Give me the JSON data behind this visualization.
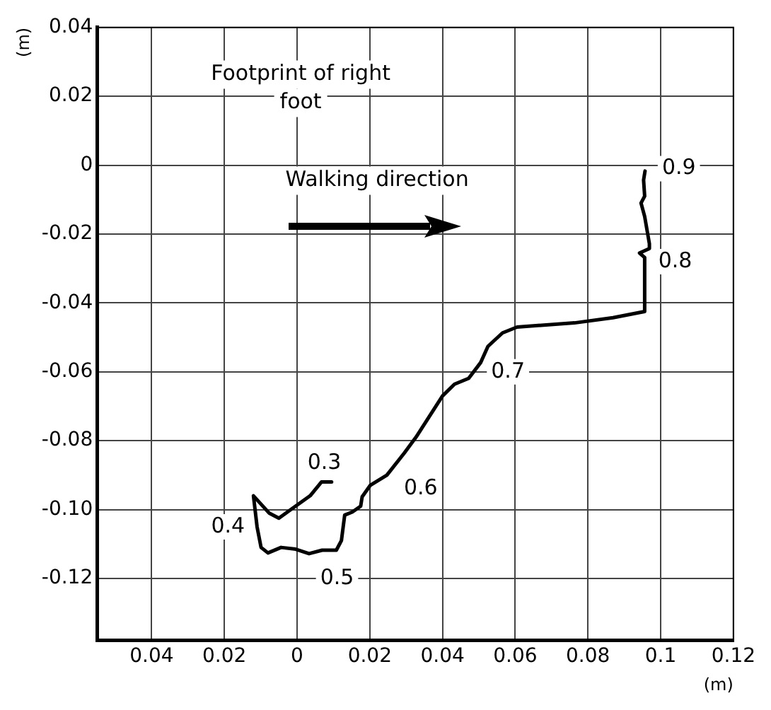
{
  "chart_data": {
    "type": "line",
    "xlabel": "(m)",
    "ylabel": "(m)",
    "series": [
      {
        "color": "#000000",
        "x": [
          0.0095,
          0.0067,
          0.0036,
          -0.0017,
          -0.005,
          -0.0077,
          -0.012,
          -0.011,
          -0.0099,
          -0.008,
          -0.0044,
          -0.0004,
          0.0033,
          0.0069,
          0.0108,
          0.0122,
          0.0131,
          0.0152,
          0.0175,
          0.0179,
          0.0201,
          0.0247,
          0.0294,
          0.0327,
          0.04,
          0.0433,
          0.0472,
          0.0505,
          0.0525,
          0.0565,
          0.0605,
          0.0763,
          0.0869,
          0.0956,
          0.0956,
          0.0942,
          0.0969,
          0.0969,
          0.0956,
          0.0946,
          0.0956,
          0.0953,
          0.0957
        ],
        "values": [
          -0.092,
          -0.092,
          -0.096,
          -0.1,
          -0.1025,
          -0.101,
          -0.096,
          -0.105,
          -0.111,
          -0.1126,
          -0.111,
          -0.1115,
          -0.1128,
          -0.1118,
          -0.1118,
          -0.109,
          -0.1016,
          -0.1007,
          -0.099,
          -0.0963,
          -0.093,
          -0.09,
          -0.0837,
          -0.079,
          -0.067,
          -0.0636,
          -0.0619,
          -0.0573,
          -0.0526,
          -0.0487,
          -0.047,
          -0.0458,
          -0.0443,
          -0.0425,
          -0.0268,
          -0.0255,
          -0.0242,
          -0.0228,
          -0.0149,
          -0.011,
          -0.009,
          -0.0043,
          -0.0017
        ]
      }
    ],
    "xlim": [
      -0.055,
      0.12
    ],
    "ylim": [
      -0.138,
      0.04
    ],
    "xticks": [
      {
        "value": -0.04,
        "label": "0.04"
      },
      {
        "value": -0.02,
        "label": "0.02"
      },
      0,
      0.02,
      0.04,
      0.06,
      0.08,
      0.1,
      0.12
    ],
    "yticks": [
      0.04,
      0.02,
      0,
      -0.02,
      -0.04,
      -0.06,
      -0.08,
      {
        "value": -0.1,
        "label": "-0.10"
      },
      -0.12
    ],
    "grid": true,
    "marker": "none",
    "line_style": "solid",
    "legend": false,
    "annotations": [
      "Footprint of right foot",
      "Walking direction",
      {
        "text": "0.3",
        "x": 0.0075,
        "y": -0.0865
      },
      {
        "text": "0.4",
        "x": -0.019,
        "y": -0.105
      },
      {
        "text": "0.5",
        "x": 0.011,
        "y": -0.12
      },
      {
        "text": "0.6",
        "x": 0.034,
        "y": -0.094
      },
      {
        "text": "0.7",
        "x": 0.058,
        "y": -0.06
      },
      {
        "text": "0.8",
        "x": 0.104,
        "y": -0.028
      },
      {
        "text": "0.9",
        "x": 0.105,
        "y": -0.001
      }
    ]
  }
}
